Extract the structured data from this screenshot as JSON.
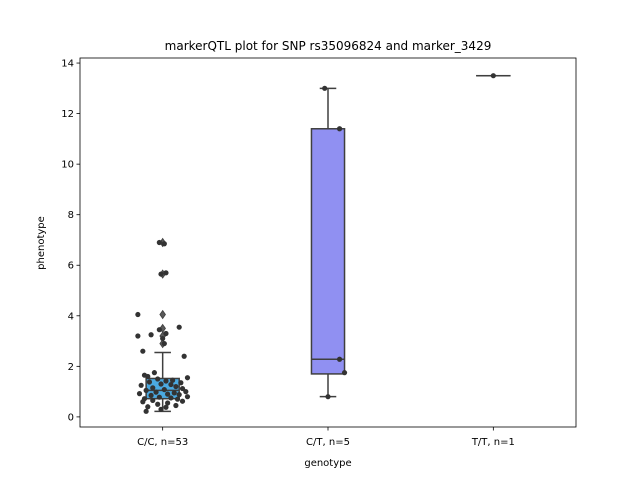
{
  "chart_data": {
    "type": "box",
    "title": "markerQTL plot for SNP rs35096824 and marker_3429",
    "xlabel": "genotype",
    "ylabel": "phenotype",
    "ylim": [
      -0.4,
      14.2
    ],
    "yticks": [
      0,
      2,
      4,
      6,
      8,
      10,
      12,
      14
    ],
    "grid": false,
    "categories": [
      "C/C, n=53",
      "C/T, n=5",
      "T/T, n=1"
    ],
    "boxes": [
      {
        "category": "C/C, n=53",
        "color": "#4ba9e0",
        "whisker_low": 0.22,
        "q1": 0.72,
        "median": 1.05,
        "q3": 1.52,
        "whisker_high": 2.55,
        "outliers": [
          2.9,
          3.2,
          3.5,
          4.05,
          5.65,
          6.9
        ]
      },
      {
        "category": "C/T, n=5",
        "color": "#9090f2",
        "whisker_low": 0.8,
        "q1": 1.7,
        "median": 2.28,
        "q3": 11.4,
        "whisker_high": 13.0,
        "outliers": []
      },
      {
        "category": "T/T, n=1",
        "color": "#9090f2",
        "whisker_low": 13.5,
        "q1": 13.5,
        "median": 13.5,
        "q3": 13.5,
        "whisker_high": 13.5,
        "outliers": []
      }
    ],
    "points": [
      {
        "group": 0,
        "y": 6.9,
        "dx": -0.02
      },
      {
        "group": 0,
        "y": 6.85,
        "dx": 0.01
      },
      {
        "group": 0,
        "y": 5.7,
        "dx": 0.02
      },
      {
        "group": 0,
        "y": 5.65,
        "dx": -0.01
      },
      {
        "group": 0,
        "y": 4.05,
        "dx": -0.15
      },
      {
        "group": 0,
        "y": 3.55,
        "dx": 0.1
      },
      {
        "group": 0,
        "y": 3.45,
        "dx": -0.02
      },
      {
        "group": 0,
        "y": 3.3,
        "dx": 0.02
      },
      {
        "group": 0,
        "y": 3.25,
        "dx": -0.07
      },
      {
        "group": 0,
        "y": 3.2,
        "dx": -0.15
      },
      {
        "group": 0,
        "y": 3.1,
        "dx": 0.0
      },
      {
        "group": 0,
        "y": 2.9,
        "dx": 0.01
      },
      {
        "group": 0,
        "y": 2.6,
        "dx": -0.12
      },
      {
        "group": 0,
        "y": 2.4,
        "dx": 0.13
      },
      {
        "group": 0,
        "y": 1.75,
        "dx": -0.05
      },
      {
        "group": 0,
        "y": 1.65,
        "dx": -0.11
      },
      {
        "group": 0,
        "y": 1.6,
        "dx": -0.09
      },
      {
        "group": 0,
        "y": 1.55,
        "dx": 0.15
      },
      {
        "group": 0,
        "y": 1.5,
        "dx": -0.03
      },
      {
        "group": 0,
        "y": 1.45,
        "dx": 0.06
      },
      {
        "group": 0,
        "y": 1.42,
        "dx": 0.02
      },
      {
        "group": 0,
        "y": 1.38,
        "dx": -0.08
      },
      {
        "group": 0,
        "y": 1.35,
        "dx": 0.11
      },
      {
        "group": 0,
        "y": 1.3,
        "dx": -0.01
      },
      {
        "group": 0,
        "y": 1.28,
        "dx": 0.05
      },
      {
        "group": 0,
        "y": 1.25,
        "dx": -0.13
      },
      {
        "group": 0,
        "y": 1.2,
        "dx": 0.08
      },
      {
        "group": 0,
        "y": 1.15,
        "dx": -0.06
      },
      {
        "group": 0,
        "y": 1.12,
        "dx": 0.12
      },
      {
        "group": 0,
        "y": 1.08,
        "dx": 0.01
      },
      {
        "group": 0,
        "y": 1.05,
        "dx": -0.1
      },
      {
        "group": 0,
        "y": 1.0,
        "dx": 0.14
      },
      {
        "group": 0,
        "y": 0.98,
        "dx": -0.04
      },
      {
        "group": 0,
        "y": 0.95,
        "dx": 0.07
      },
      {
        "group": 0,
        "y": 0.92,
        "dx": -0.14
      },
      {
        "group": 0,
        "y": 0.9,
        "dx": 0.03
      },
      {
        "group": 0,
        "y": 0.88,
        "dx": 0.1
      },
      {
        "group": 0,
        "y": 0.85,
        "dx": -0.07
      },
      {
        "group": 0,
        "y": 0.8,
        "dx": 0.15
      },
      {
        "group": 0,
        "y": 0.78,
        "dx": -0.02
      },
      {
        "group": 0,
        "y": 0.75,
        "dx": 0.05
      },
      {
        "group": 0,
        "y": 0.72,
        "dx": -0.11
      },
      {
        "group": 0,
        "y": 0.7,
        "dx": 0.09
      },
      {
        "group": 0,
        "y": 0.65,
        "dx": -0.06
      },
      {
        "group": 0,
        "y": 0.62,
        "dx": 0.12
      },
      {
        "group": 0,
        "y": 0.6,
        "dx": -0.12
      },
      {
        "group": 0,
        "y": 0.55,
        "dx": 0.03
      },
      {
        "group": 0,
        "y": 0.5,
        "dx": -0.03
      },
      {
        "group": 0,
        "y": 0.45,
        "dx": 0.08
      },
      {
        "group": 0,
        "y": 0.4,
        "dx": -0.09
      },
      {
        "group": 0,
        "y": 0.38,
        "dx": 0.02
      },
      {
        "group": 0,
        "y": 0.3,
        "dx": -0.01
      },
      {
        "group": 0,
        "y": 0.22,
        "dx": -0.1
      },
      {
        "group": 1,
        "y": 13.0,
        "dx": -0.02
      },
      {
        "group": 1,
        "y": 11.4,
        "dx": 0.07
      },
      {
        "group": 1,
        "y": 2.28,
        "dx": 0.07
      },
      {
        "group": 1,
        "y": 1.75,
        "dx": 0.1
      },
      {
        "group": 1,
        "y": 0.8,
        "dx": 0.0
      },
      {
        "group": 2,
        "y": 13.5,
        "dx": 0.0
      }
    ]
  }
}
